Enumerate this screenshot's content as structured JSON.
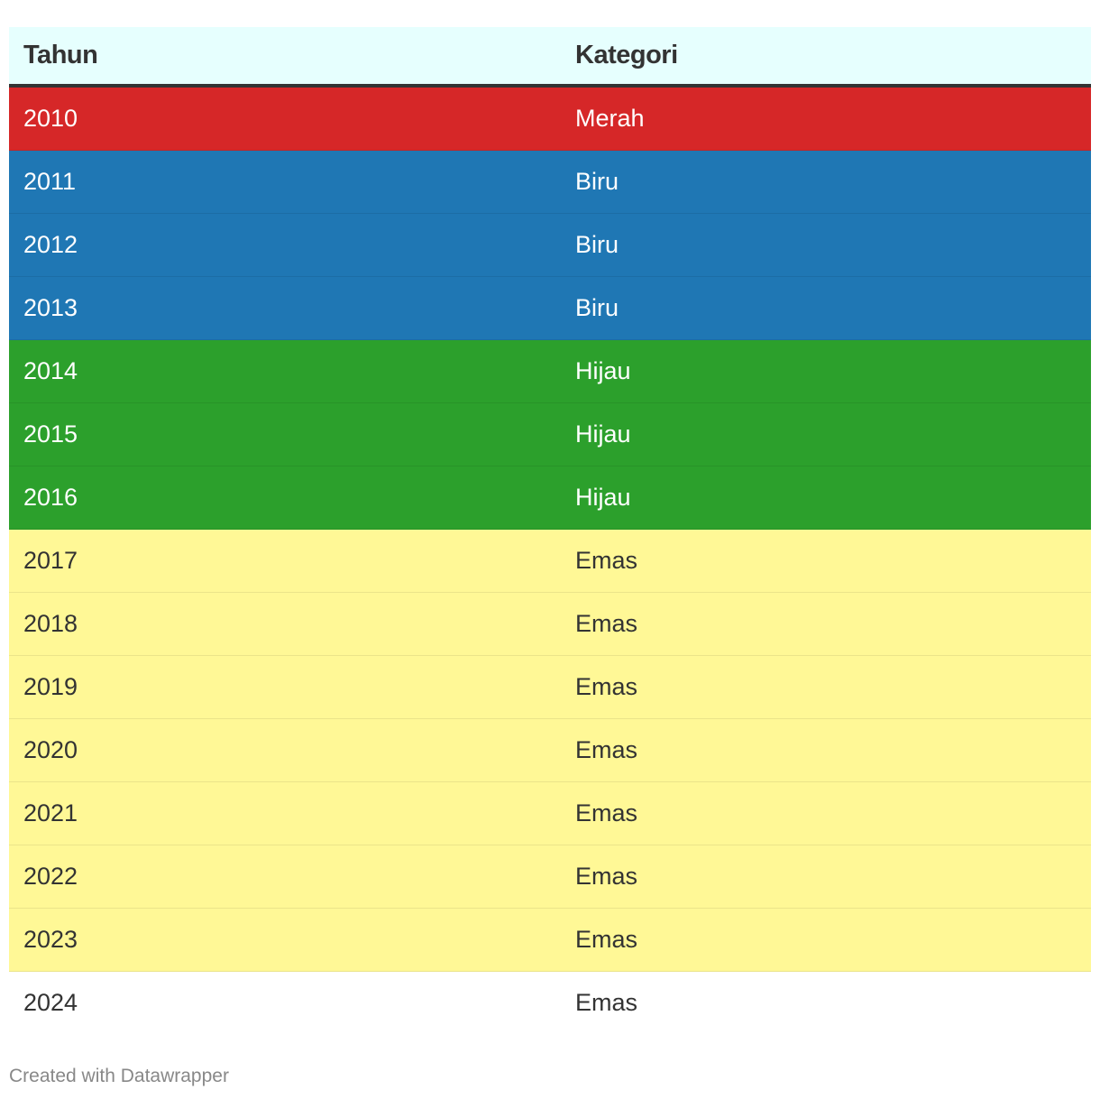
{
  "chart_data": {
    "type": "table",
    "columns": [
      "Tahun",
      "Kategori"
    ],
    "rows": [
      {
        "year": "2010",
        "category": "Merah",
        "bg": "#d62728",
        "fg": "#ffffff"
      },
      {
        "year": "2011",
        "category": "Biru",
        "bg": "#1f77b4",
        "fg": "#ffffff"
      },
      {
        "year": "2012",
        "category": "Biru",
        "bg": "#1f77b4",
        "fg": "#ffffff"
      },
      {
        "year": "2013",
        "category": "Biru",
        "bg": "#1f77b4",
        "fg": "#ffffff"
      },
      {
        "year": "2014",
        "category": "Hijau",
        "bg": "#2ca02c",
        "fg": "#ffffff"
      },
      {
        "year": "2015",
        "category": "Hijau",
        "bg": "#2ca02c",
        "fg": "#ffffff"
      },
      {
        "year": "2016",
        "category": "Hijau",
        "bg": "#2ca02c",
        "fg": "#ffffff"
      },
      {
        "year": "2017",
        "category": "Emas",
        "bg": "#fff896",
        "fg": "#333333"
      },
      {
        "year": "2018",
        "category": "Emas",
        "bg": "#fff896",
        "fg": "#333333"
      },
      {
        "year": "2019",
        "category": "Emas",
        "bg": "#fff896",
        "fg": "#333333"
      },
      {
        "year": "2020",
        "category": "Emas",
        "bg": "#fff896",
        "fg": "#333333"
      },
      {
        "year": "2021",
        "category": "Emas",
        "bg": "#fff896",
        "fg": "#333333"
      },
      {
        "year": "2022",
        "category": "Emas",
        "bg": "#fff896",
        "fg": "#333333"
      },
      {
        "year": "2023",
        "category": "Emas",
        "bg": "#fff896",
        "fg": "#333333"
      },
      {
        "year": "2024",
        "category": "Emas",
        "bg": "#ffffff",
        "fg": "#333333"
      }
    ]
  },
  "footer": {
    "credit": "Created with Datawrapper"
  }
}
